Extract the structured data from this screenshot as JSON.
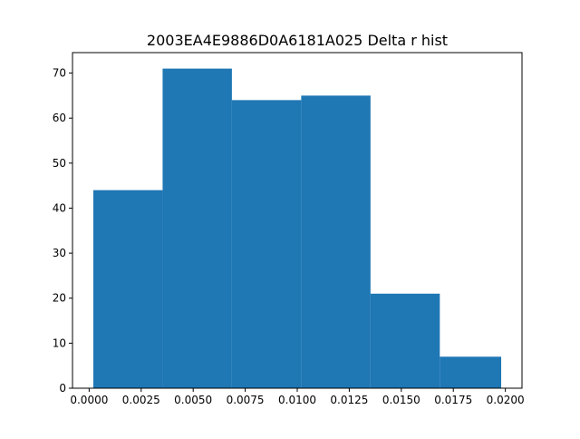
{
  "chart_data": {
    "type": "bar",
    "title": "2003EA4E9886D0A6181A025 Delta r hist",
    "xlabel": "",
    "ylabel": "",
    "bin_edges": [
      0.0002,
      0.00353,
      0.00686,
      0.01019,
      0.01352,
      0.01685,
      0.0198
    ],
    "values": [
      44,
      71,
      64,
      65,
      21,
      7
    ],
    "xlim": [
      -0.0008,
      0.0208
    ],
    "ylim": [
      0,
      74.55
    ],
    "x_ticks": [
      0.0,
      0.0025,
      0.005,
      0.0075,
      0.01,
      0.0125,
      0.015,
      0.0175,
      0.02
    ],
    "x_tick_labels": [
      "0.0000",
      "0.0025",
      "0.0050",
      "0.0075",
      "0.0100",
      "0.0125",
      "0.0150",
      "0.0175",
      "0.0200"
    ],
    "y_ticks": [
      0,
      10,
      20,
      30,
      40,
      50,
      60,
      70
    ],
    "y_tick_labels": [
      "0",
      "10",
      "20",
      "30",
      "40",
      "50",
      "60",
      "70"
    ],
    "bar_color": "#1f77b4",
    "grid": false
  }
}
